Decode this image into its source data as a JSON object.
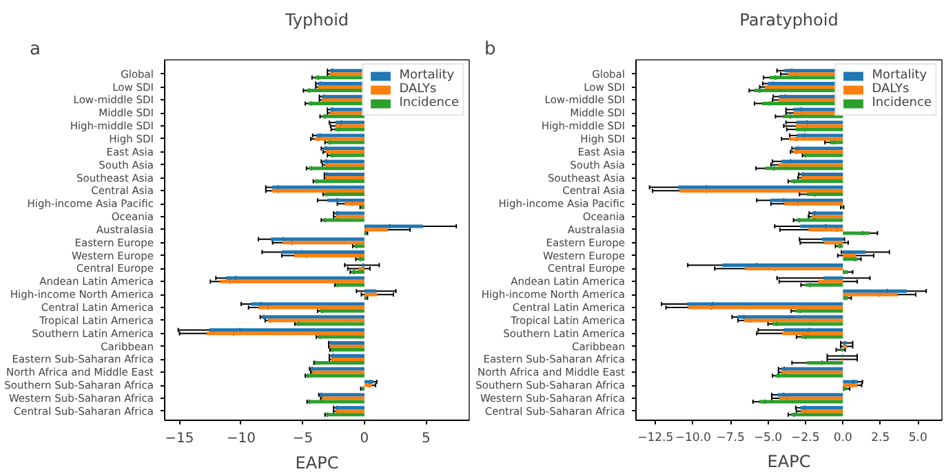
{
  "chart_data": [
    {
      "type": "bar",
      "orientation": "horizontal",
      "title": "Typhoid",
      "xlabel": "EAPC",
      "annotations": [
        "a"
      ],
      "legend": "top right",
      "categories": [
        "Global",
        "Low SDI",
        "Low-middle SDI",
        "Middle SDI",
        "High-middle SDI",
        "High SDI",
        "East Asia",
        "South Asia",
        "Southeast Asia",
        "Central Asia",
        "High-income Asia Pacific",
        "Oceania",
        "Australasia",
        "Eastern Europe",
        "Western Europe",
        "Central Europe",
        "Andean Latin America",
        "High-income North America",
        "Central Latin America",
        "Tropical Latin America",
        "Southern Latin America",
        "Caribbean",
        "Eastern Sub-Saharan Africa",
        "North Africa and Middle East",
        "Southern Sub-Saharan Africa",
        "Western Sub-Saharan Africa",
        "Central Sub-Saharan Africa"
      ],
      "xlim": [
        -16.2,
        8.5
      ],
      "xticks": [
        {
          "value": -15,
          "label": "−15"
        },
        {
          "value": -10,
          "label": "−10"
        },
        {
          "value": -5,
          "label": "−5"
        },
        0,
        5
      ],
      "series": [
        {
          "name": "Mortality",
          "color": "#1f77b4",
          "values": [
            -2.8,
            -3.75,
            -3.45,
            -2.8,
            -2.35,
            -3.9,
            -3.3,
            -3.3,
            -3.15,
            -7.5,
            -3.0,
            -2.35,
            4.75,
            -7.6,
            -6.7,
            -0.2,
            -11.25,
            0.95,
            -9.2,
            -8.3,
            -12.6,
            -2.8,
            -2.7,
            -4.35,
            0.75,
            -3.6,
            -2.35
          ],
          "errors": [
            0.2,
            0.2,
            0.2,
            0.2,
            0.5,
            0.3,
            0.2,
            0.2,
            0.1,
            0.5,
            0.8,
            0.15,
            2.7,
            1.0,
            1.6,
            1.4,
            0.8,
            1.6,
            0.8,
            0.15,
            2.5,
            0.1,
            0.15,
            0.1,
            0.25,
            0.1,
            0.15
          ]
        },
        {
          "name": "DALYs",
          "color": "#ff7f0e",
          "values": [
            -2.8,
            -3.75,
            -3.45,
            -2.8,
            -2.35,
            -4.05,
            -3.15,
            -3.2,
            -3.15,
            -7.5,
            -1.6,
            -2.35,
            1.9,
            -6.65,
            -5.7,
            -0.45,
            -11.7,
            1.05,
            -8.6,
            -7.85,
            -12.8,
            -2.8,
            -2.7,
            -4.25,
            0.65,
            -3.45,
            -2.35
          ],
          "errors": [
            0.2,
            0.2,
            0.2,
            0.2,
            0.4,
            0.3,
            0.2,
            0.2,
            0.1,
            0.5,
            0.6,
            0.15,
            1.8,
            0.8,
            1.0,
            0.9,
            0.8,
            1.3,
            0.8,
            0.2,
            2.2,
            0.1,
            0.15,
            0.1,
            0.25,
            0.1,
            0.15
          ]
        },
        {
          "name": "Incidence",
          "color": "#2ca02c",
          "values": [
            -4.0,
            -4.7,
            -4.55,
            -3.4,
            -2.4,
            -3.0,
            -2.8,
            -4.5,
            -4.0,
            -3.2,
            -0.25,
            -3.35,
            0.15,
            -0.8,
            -0.5,
            -1.0,
            -2.3,
            0.15,
            -3.6,
            -5.5,
            -3.75,
            -2.7,
            -4.05,
            -4.7,
            -0.2,
            -4.55,
            -3.1
          ],
          "errors": [
            0.25,
            0.25,
            0.25,
            0.2,
            0.3,
            0.2,
            0.2,
            0.2,
            0.15,
            0.15,
            0.1,
            0.15,
            0.1,
            0.15,
            0.2,
            0.15,
            0.1,
            0.1,
            0.2,
            0.15,
            0.15,
            0.1,
            0.05,
            0.1,
            0.1,
            0.1,
            0.1
          ]
        }
      ]
    },
    {
      "type": "bar",
      "orientation": "horizontal",
      "title": "Paratyphoid",
      "xlabel": "EAPC",
      "annotations": [
        "b"
      ],
      "legend": "top right",
      "categories": [
        "Global",
        "Low SDI",
        "Low-middle SDI",
        "Middle SDI",
        "High-middle SDI",
        "High SDI",
        "East Asia",
        "South Asia",
        "Southeast Asia",
        "Central Asia",
        "High-income Asia Pacific",
        "Oceania",
        "Australasia",
        "Eastern Europe",
        "Western Europe",
        "Central Europe",
        "Andean Latin America",
        "High-income North America",
        "Central Latin America",
        "Tropical Latin America",
        "Southern Latin America",
        "Caribbean",
        "Eastern Sub-Saharan Africa",
        "North Africa and Middle East",
        "Southern Sub-Saharan Africa",
        "Western Sub-Saharan Africa",
        "Central Sub-Saharan Africa"
      ],
      "xlim": [
        -13.8,
        6.6
      ],
      "xticks": [
        {
          "value": -12.5,
          "label": "−12.5"
        },
        {
          "value": -10,
          "label": "−10.0"
        },
        {
          "value": -7.5,
          "label": "−7.5"
        },
        {
          "value": -5,
          "label": "−5.0"
        },
        {
          "value": -2.5,
          "label": "−2.5"
        },
        {
          "value": 0,
          "label": "0.0"
        },
        {
          "value": 2.5,
          "label": "2.5"
        },
        {
          "value": 5,
          "label": "5.0"
        }
      ],
      "series": [
        {
          "name": "Mortality",
          "color": "#1f77b4",
          "values": [
            -3.9,
            -5.0,
            -4.25,
            -3.3,
            -3.1,
            -3.05,
            -3.2,
            -4.1,
            -2.8,
            -11.0,
            -4.85,
            -2.05,
            -2.85,
            -1.4,
            1.5,
            -8.05,
            -1.3,
            4.25,
            -10.4,
            -7.0,
            -3.95,
            0.25,
            -0.05,
            -4.1,
            1.0,
            -4.35,
            -2.85
          ],
          "errors": [
            0.5,
            0.35,
            0.4,
            0.5,
            0.7,
            0.5,
            0.2,
            0.6,
            0.15,
            1.9,
            0.9,
            0.2,
            1.7,
            1.5,
            1.6,
            2.3,
            3.1,
            1.3,
            1.7,
            0.4,
            1.7,
            0.4,
            1.0,
            0.2,
            0.3,
            0.4,
            0.3
          ]
        },
        {
          "name": "DALYs",
          "color": "#ff7f0e",
          "values": [
            -3.65,
            -5.2,
            -4.3,
            -3.3,
            -3.15,
            -3.6,
            -3.3,
            -4.3,
            -2.8,
            -10.9,
            -3.9,
            -2.1,
            -2.3,
            -1.25,
            0.85,
            -6.55,
            -1.65,
            3.65,
            -10.3,
            -6.6,
            -4.05,
            0.25,
            -0.05,
            -4.1,
            0.95,
            -4.25,
            -2.8
          ],
          "errors": [
            0.5,
            0.35,
            0.4,
            0.5,
            0.8,
            0.5,
            0.2,
            0.5,
            0.2,
            1.8,
            0.9,
            0.2,
            1.9,
            1.6,
            1.2,
            2.0,
            2.6,
            1.2,
            1.5,
            0.4,
            1.7,
            0.4,
            1.0,
            0.2,
            0.3,
            0.5,
            0.3
          ]
        },
        {
          "name": "Incidence",
          "color": "#2ca02c",
          "values": [
            -4.9,
            -5.9,
            -5.4,
            -4.0,
            -3.15,
            -0.9,
            -2.6,
            -5.2,
            -3.45,
            -2.4,
            -0.05,
            -3.1,
            1.8,
            -0.35,
            1.0,
            0.35,
            -2.5,
            0.35,
            -3.15,
            -4.7,
            -2.8,
            -0.15,
            -2.4,
            -4.5,
            0.25,
            -5.6,
            -3.45
          ],
          "errors": [
            0.4,
            0.35,
            0.5,
            0.5,
            0.6,
            0.3,
            0.1,
            0.6,
            0.2,
            0.5,
            0.1,
            0.2,
            0.5,
            0.15,
            0.2,
            0.3,
            0.3,
            0.2,
            0.3,
            0.3,
            0.3,
            0.3,
            1.0,
            0.2,
            0.2,
            0.4,
            0.2
          ]
        }
      ]
    }
  ]
}
